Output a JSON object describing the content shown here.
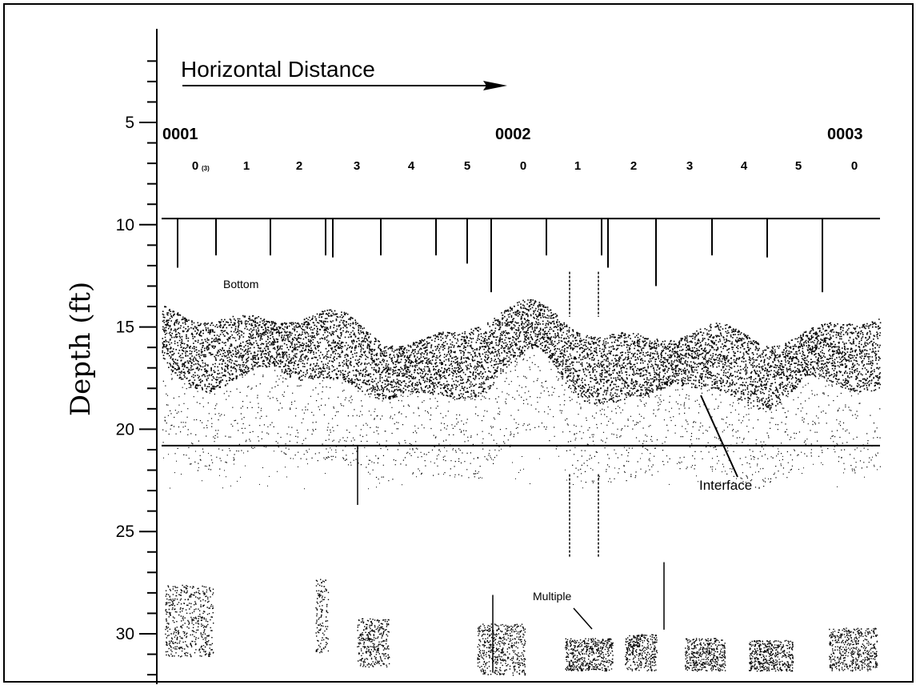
{
  "chart_data": {
    "type": "other",
    "title": "Horizontal Distance",
    "ylabel": "Depth (ft)",
    "y_axis": {
      "inverted": true,
      "ylim": [
        2,
        32
      ],
      "major_ticks": [
        5,
        10,
        15,
        20,
        25,
        30
      ],
      "minor_step": 1
    },
    "fix_labels": [
      "0001",
      "0002",
      "0003"
    ],
    "segment_labels": [
      "0",
      "1",
      "2",
      "3",
      "4",
      "5",
      "0",
      "1",
      "2",
      "3",
      "4",
      "5",
      "0"
    ],
    "first_segment_subscript": "(3)",
    "reference_lines_depth": [
      9.7,
      20.8
    ],
    "annotations": {
      "bottom": "Bottom",
      "interface": "Interface",
      "multiple": "Multiple"
    },
    "colors": {
      "ink": "#000000",
      "background": "#ffffff"
    }
  }
}
